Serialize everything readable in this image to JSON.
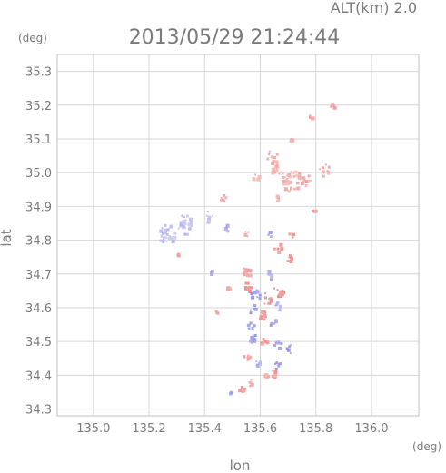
{
  "header": {
    "alt_label": "ALT(km) 2.0",
    "timestamp": "2013/05/29 21:24:44"
  },
  "axes": {
    "y_unit": "(deg)",
    "x_unit": "(deg)",
    "ylabel": "lat",
    "xlabel": "lon"
  },
  "chart_data": {
    "type": "heatmap",
    "title": "2013/05/29 21:24:44",
    "xlabel": "lon",
    "ylabel": "lat",
    "xlim": [
      134.87,
      136.17
    ],
    "ylim": [
      34.28,
      35.35
    ],
    "xticks": [
      135.0,
      135.2,
      135.4,
      135.6,
      135.8,
      136.0
    ],
    "yticks": [
      34.3,
      34.4,
      34.5,
      34.6,
      34.7,
      34.8,
      34.9,
      35.0,
      35.1,
      35.2,
      35.3
    ],
    "grid": true,
    "colors": {
      "positive": "#f08a8a",
      "negative": "#8f8fe8",
      "pale_positive": "#f7c4c4",
      "pale_negative": "#cfcff5"
    },
    "patches": [
      {
        "lon": 135.86,
        "lat": 35.2,
        "sign": "positive",
        "intensity": 0.5,
        "size": 0.012
      },
      {
        "lon": 135.78,
        "lat": 35.17,
        "sign": "positive",
        "intensity": 0.5,
        "size": 0.008
      },
      {
        "lon": 135.71,
        "lat": 35.1,
        "sign": "positive",
        "intensity": 0.4,
        "size": 0.006
      },
      {
        "lon": 135.64,
        "lat": 35.05,
        "sign": "positive",
        "intensity": 0.3,
        "size": 0.02
      },
      {
        "lon": 135.66,
        "lat": 35.01,
        "sign": "positive",
        "intensity": 0.3,
        "size": 0.022
      },
      {
        "lon": 135.71,
        "lat": 34.98,
        "sign": "positive",
        "intensity": 0.3,
        "size": 0.035
      },
      {
        "lon": 135.76,
        "lat": 34.98,
        "sign": "positive",
        "intensity": 0.3,
        "size": 0.02
      },
      {
        "lon": 135.83,
        "lat": 35.01,
        "sign": "positive",
        "intensity": 0.3,
        "size": 0.02
      },
      {
        "lon": 135.58,
        "lat": 34.99,
        "sign": "positive",
        "intensity": 0.3,
        "size": 0.012
      },
      {
        "lon": 135.46,
        "lat": 34.93,
        "sign": "positive",
        "intensity": 0.4,
        "size": 0.012
      },
      {
        "lon": 135.66,
        "lat": 34.93,
        "sign": "positive",
        "intensity": 0.4,
        "size": 0.01
      },
      {
        "lon": 135.79,
        "lat": 34.89,
        "sign": "positive",
        "intensity": 0.5,
        "size": 0.006
      },
      {
        "lon": 135.26,
        "lat": 34.82,
        "sign": "negative",
        "intensity": 0.2,
        "size": 0.03
      },
      {
        "lon": 135.33,
        "lat": 34.85,
        "sign": "negative",
        "intensity": 0.2,
        "size": 0.03
      },
      {
        "lon": 135.41,
        "lat": 34.87,
        "sign": "negative",
        "intensity": 0.2,
        "size": 0.018
      },
      {
        "lon": 135.48,
        "lat": 34.84,
        "sign": "negative",
        "intensity": 0.6,
        "size": 0.01
      },
      {
        "lon": 135.55,
        "lat": 34.82,
        "sign": "positive",
        "intensity": 0.5,
        "size": 0.01
      },
      {
        "lon": 135.63,
        "lat": 34.82,
        "sign": "negative",
        "intensity": 0.5,
        "size": 0.012
      },
      {
        "lon": 135.66,
        "lat": 34.78,
        "sign": "positive",
        "intensity": 0.7,
        "size": 0.015
      },
      {
        "lon": 135.71,
        "lat": 34.82,
        "sign": "positive",
        "intensity": 0.6,
        "size": 0.01
      },
      {
        "lon": 135.7,
        "lat": 34.75,
        "sign": "positive",
        "intensity": 0.6,
        "size": 0.01
      },
      {
        "lon": 135.3,
        "lat": 34.76,
        "sign": "positive",
        "intensity": 0.8,
        "size": 0.004
      },
      {
        "lon": 135.42,
        "lat": 34.71,
        "sign": "negative",
        "intensity": 0.5,
        "size": 0.006
      },
      {
        "lon": 135.55,
        "lat": 34.71,
        "sign": "positive",
        "intensity": 0.5,
        "size": 0.02
      },
      {
        "lon": 135.63,
        "lat": 34.7,
        "sign": "negative",
        "intensity": 0.5,
        "size": 0.015
      },
      {
        "lon": 135.55,
        "lat": 34.66,
        "sign": "positive",
        "intensity": 0.8,
        "size": 0.02
      },
      {
        "lon": 135.58,
        "lat": 34.64,
        "sign": "negative",
        "intensity": 0.7,
        "size": 0.018
      },
      {
        "lon": 135.62,
        "lat": 34.63,
        "sign": "positive",
        "intensity": 0.8,
        "size": 0.018
      },
      {
        "lon": 135.66,
        "lat": 34.65,
        "sign": "positive",
        "intensity": 0.9,
        "size": 0.02
      },
      {
        "lon": 135.66,
        "lat": 34.61,
        "sign": "negative",
        "intensity": 0.6,
        "size": 0.015
      },
      {
        "lon": 135.57,
        "lat": 34.6,
        "sign": "negative",
        "intensity": 0.8,
        "size": 0.015
      },
      {
        "lon": 135.61,
        "lat": 34.58,
        "sign": "positive",
        "intensity": 0.7,
        "size": 0.02
      },
      {
        "lon": 135.64,
        "lat": 34.56,
        "sign": "negative",
        "intensity": 0.6,
        "size": 0.015
      },
      {
        "lon": 135.56,
        "lat": 34.55,
        "sign": "negative",
        "intensity": 0.7,
        "size": 0.015
      },
      {
        "lon": 135.48,
        "lat": 34.66,
        "sign": "positive",
        "intensity": 0.6,
        "size": 0.005
      },
      {
        "lon": 135.44,
        "lat": 34.59,
        "sign": "positive",
        "intensity": 0.5,
        "size": 0.004
      },
      {
        "lon": 135.57,
        "lat": 34.51,
        "sign": "negative",
        "intensity": 0.8,
        "size": 0.018
      },
      {
        "lon": 135.61,
        "lat": 34.5,
        "sign": "positive",
        "intensity": 0.6,
        "size": 0.015
      },
      {
        "lon": 135.66,
        "lat": 34.49,
        "sign": "negative",
        "intensity": 0.7,
        "size": 0.015
      },
      {
        "lon": 135.7,
        "lat": 34.48,
        "sign": "negative",
        "intensity": 0.6,
        "size": 0.015
      },
      {
        "lon": 135.55,
        "lat": 34.46,
        "sign": "positive",
        "intensity": 0.5,
        "size": 0.015
      },
      {
        "lon": 135.59,
        "lat": 34.44,
        "sign": "negative",
        "intensity": 0.4,
        "size": 0.01
      },
      {
        "lon": 135.66,
        "lat": 34.43,
        "sign": "negative",
        "intensity": 0.7,
        "size": 0.012
      },
      {
        "lon": 135.64,
        "lat": 34.41,
        "sign": "positive",
        "intensity": 0.6,
        "size": 0.012
      },
      {
        "lon": 135.62,
        "lat": 34.4,
        "sign": "positive",
        "intensity": 0.5,
        "size": 0.008
      },
      {
        "lon": 135.56,
        "lat": 34.38,
        "sign": "positive",
        "intensity": 0.4,
        "size": 0.01
      },
      {
        "lon": 135.53,
        "lat": 34.36,
        "sign": "positive",
        "intensity": 0.8,
        "size": 0.01
      },
      {
        "lon": 135.49,
        "lat": 34.35,
        "sign": "negative",
        "intensity": 0.6,
        "size": 0.004
      }
    ]
  }
}
